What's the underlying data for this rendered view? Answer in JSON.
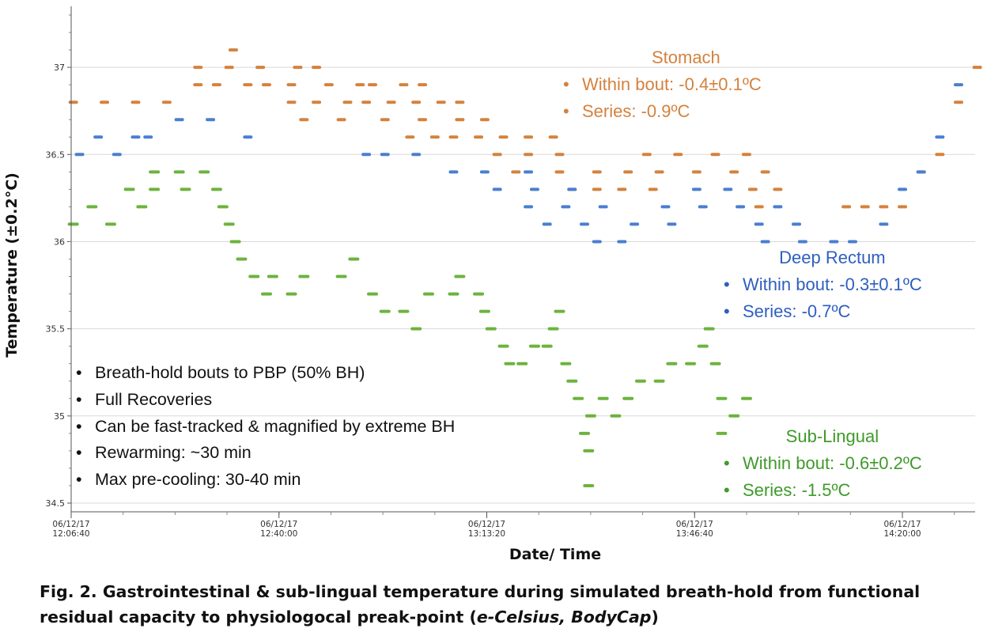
{
  "chart_data": {
    "type": "scatter",
    "title": "",
    "xlabel": "Date/ Time",
    "ylabel": "Temperature (±0.2°C)",
    "ylim": [
      34.45,
      37.35
    ],
    "yticks": [
      34.5,
      35,
      35.5,
      36,
      36.5,
      37
    ],
    "ytick_labels": [
      "34.5",
      "35",
      "35.5",
      "36",
      "36.5",
      "37"
    ],
    "xlim": [
      "06/12/17 12:06:40",
      "06/12/17 14:31:40"
    ],
    "xticks": [
      {
        "t": "06/12/17 12:06:40",
        "label1": "06/12/17",
        "label2": "12:06:40"
      },
      {
        "t": "06/12/17 12:40:00",
        "label1": "06/12/17",
        "label2": "12:40:00"
      },
      {
        "t": "06/12/17 13:13:20",
        "label1": "06/12/17",
        "label2": "13:13:20"
      },
      {
        "t": "06/12/17 13:46:40",
        "label1": "06/12/17",
        "label2": "13:46:40"
      },
      {
        "t": "06/12/17 14:20:00",
        "label1": "06/12/17",
        "label2": "14:20:00"
      }
    ],
    "grid": "horizontal",
    "series": [
      {
        "name": "Stomach",
        "color": "#d4823e",
        "points": [
          [
            "06/12/17 12:07:00",
            36.8
          ],
          [
            "06/12/17 12:12:00",
            36.8
          ],
          [
            "06/12/17 12:17:00",
            36.8
          ],
          [
            "06/12/17 12:22:00",
            36.8
          ],
          [
            "06/12/17 12:27:00",
            37.0
          ],
          [
            "06/12/17 12:32:00",
            37.0
          ],
          [
            "06/12/17 12:32:40",
            37.1
          ],
          [
            "06/12/17 12:37:00",
            37.0
          ],
          [
            "06/12/17 12:43:00",
            37.0
          ],
          [
            "06/12/17 12:46:00",
            37.0
          ],
          [
            "06/12/17 12:27:00",
            36.9
          ],
          [
            "06/12/17 12:30:00",
            36.9
          ],
          [
            "06/12/17 12:35:00",
            36.9
          ],
          [
            "06/12/17 12:38:00",
            36.9
          ],
          [
            "06/12/17 12:42:00",
            36.9
          ],
          [
            "06/12/17 12:48:00",
            36.9
          ],
          [
            "06/12/17 12:53:00",
            36.9
          ],
          [
            "06/12/17 12:55:00",
            36.9
          ],
          [
            "06/12/17 13:00:00",
            36.9
          ],
          [
            "06/12/17 13:03:00",
            36.9
          ],
          [
            "06/12/17 12:42:00",
            36.8
          ],
          [
            "06/12/17 12:46:00",
            36.8
          ],
          [
            "06/12/17 12:51:00",
            36.8
          ],
          [
            "06/12/17 12:54:00",
            36.8
          ],
          [
            "06/12/17 12:58:00",
            36.8
          ],
          [
            "06/12/17 13:02:00",
            36.8
          ],
          [
            "06/12/17 13:06:00",
            36.8
          ],
          [
            "06/12/17 13:09:00",
            36.8
          ],
          [
            "06/12/17 12:44:00",
            36.7
          ],
          [
            "06/12/17 12:50:00",
            36.7
          ],
          [
            "06/12/17 12:57:00",
            36.7
          ],
          [
            "06/12/17 13:03:00",
            36.7
          ],
          [
            "06/12/17 13:09:00",
            36.7
          ],
          [
            "06/12/17 13:13:00",
            36.7
          ],
          [
            "06/12/17 13:01:00",
            36.6
          ],
          [
            "06/12/17 13:05:00",
            36.6
          ],
          [
            "06/12/17 13:08:00",
            36.6
          ],
          [
            "06/12/17 13:12:00",
            36.6
          ],
          [
            "06/12/17 13:16:00",
            36.6
          ],
          [
            "06/12/17 13:20:00",
            36.6
          ],
          [
            "06/12/17 13:24:00",
            36.6
          ],
          [
            "06/12/17 13:15:00",
            36.5
          ],
          [
            "06/12/17 13:20:00",
            36.5
          ],
          [
            "06/12/17 13:25:00",
            36.5
          ],
          [
            "06/12/17 13:39:00",
            36.5
          ],
          [
            "06/12/17 13:44:00",
            36.5
          ],
          [
            "06/12/17 13:50:00",
            36.5
          ],
          [
            "06/12/17 13:55:00",
            36.5
          ],
          [
            "06/12/17 13:18:00",
            36.4
          ],
          [
            "06/12/17 13:25:00",
            36.4
          ],
          [
            "06/12/17 13:31:00",
            36.4
          ],
          [
            "06/12/17 13:36:00",
            36.4
          ],
          [
            "06/12/17 13:41:00",
            36.4
          ],
          [
            "06/12/17 13:47:00",
            36.4
          ],
          [
            "06/12/17 13:53:00",
            36.4
          ],
          [
            "06/12/17 13:58:00",
            36.4
          ],
          [
            "06/12/17 13:27:00",
            36.3
          ],
          [
            "06/12/17 13:31:00",
            36.3
          ],
          [
            "06/12/17 13:35:00",
            36.3
          ],
          [
            "06/12/17 13:40:00",
            36.3
          ],
          [
            "06/12/17 13:56:00",
            36.3
          ],
          [
            "06/12/17 14:00:00",
            36.3
          ],
          [
            "06/12/17 13:57:00",
            36.2
          ],
          [
            "06/12/17 14:11:00",
            36.2
          ],
          [
            "06/12/17 14:14:00",
            36.2
          ],
          [
            "06/12/17 14:17:00",
            36.2
          ],
          [
            "06/12/17 14:20:00",
            36.2
          ],
          [
            "06/12/17 14:23:00",
            36.4
          ],
          [
            "06/12/17 14:26:00",
            36.5
          ],
          [
            "06/12/17 14:29:00",
            36.8
          ],
          [
            "06/12/17 14:32:00",
            37.0
          ]
        ]
      },
      {
        "name": "Deep Rectum",
        "color": "#4a7fd0",
        "points": [
          [
            "06/12/17 12:08:00",
            36.5
          ],
          [
            "06/12/17 12:11:00",
            36.6
          ],
          [
            "06/12/17 12:14:00",
            36.5
          ],
          [
            "06/12/17 12:17:00",
            36.6
          ],
          [
            "06/12/17 12:19:00",
            36.6
          ],
          [
            "06/12/17 12:24:00",
            36.7
          ],
          [
            "06/12/17 12:29:00",
            36.7
          ],
          [
            "06/12/17 12:35:00",
            36.6
          ],
          [
            "06/12/17 12:54:00",
            36.5
          ],
          [
            "06/12/17 12:57:00",
            36.5
          ],
          [
            "06/12/17 13:02:00",
            36.5
          ],
          [
            "06/12/17 13:08:00",
            36.4
          ],
          [
            "06/12/17 13:13:00",
            36.4
          ],
          [
            "06/12/17 13:20:00",
            36.4
          ],
          [
            "06/12/17 13:15:00",
            36.3
          ],
          [
            "06/12/17 13:21:00",
            36.3
          ],
          [
            "06/12/17 13:27:00",
            36.3
          ],
          [
            "06/12/17 13:47:00",
            36.3
          ],
          [
            "06/12/17 13:52:00",
            36.3
          ],
          [
            "06/12/17 13:20:00",
            36.2
          ],
          [
            "06/12/17 13:26:00",
            36.2
          ],
          [
            "06/12/17 13:32:00",
            36.2
          ],
          [
            "06/12/17 13:42:00",
            36.2
          ],
          [
            "06/12/17 13:48:00",
            36.2
          ],
          [
            "06/12/17 13:54:00",
            36.2
          ],
          [
            "06/12/17 14:00:00",
            36.2
          ],
          [
            "06/12/17 13:23:00",
            36.1
          ],
          [
            "06/12/17 13:29:00",
            36.1
          ],
          [
            "06/12/17 13:37:00",
            36.1
          ],
          [
            "06/12/17 13:43:00",
            36.1
          ],
          [
            "06/12/17 13:57:00",
            36.1
          ],
          [
            "06/12/17 14:03:00",
            36.1
          ],
          [
            "06/12/17 13:31:00",
            36.0
          ],
          [
            "06/12/17 13:35:00",
            36.0
          ],
          [
            "06/12/17 13:58:00",
            36.0
          ],
          [
            "06/12/17 14:04:00",
            36.0
          ],
          [
            "06/12/17 14:09:00",
            36.0
          ],
          [
            "06/12/17 14:12:00",
            36.0
          ],
          [
            "06/12/17 14:17:00",
            36.1
          ],
          [
            "06/12/17 14:20:00",
            36.3
          ],
          [
            "06/12/17 14:23:00",
            36.4
          ],
          [
            "06/12/17 14:26:00",
            36.6
          ],
          [
            "06/12/17 14:29:00",
            36.9
          ]
        ]
      },
      {
        "name": "Sub-Lingual",
        "color": "#6db33f",
        "points": [
          [
            "06/12/17 12:07:00",
            36.1
          ],
          [
            "06/12/17 12:10:00",
            36.2
          ],
          [
            "06/12/17 12:13:00",
            36.1
          ],
          [
            "06/12/17 12:16:00",
            36.3
          ],
          [
            "06/12/17 12:18:00",
            36.2
          ],
          [
            "06/12/17 12:20:00",
            36.4
          ],
          [
            "06/12/17 12:24:00",
            36.4
          ],
          [
            "06/12/17 12:28:00",
            36.4
          ],
          [
            "06/12/17 12:20:00",
            36.3
          ],
          [
            "06/12/17 12:25:00",
            36.3
          ],
          [
            "06/12/17 12:30:00",
            36.3
          ],
          [
            "06/12/17 12:31:00",
            36.2
          ],
          [
            "06/12/17 12:32:00",
            36.1
          ],
          [
            "06/12/17 12:33:00",
            36.0
          ],
          [
            "06/12/17 12:34:00",
            35.9
          ],
          [
            "06/12/17 12:36:00",
            35.8
          ],
          [
            "06/12/17 12:39:00",
            35.8
          ],
          [
            "06/12/17 12:38:00",
            35.7
          ],
          [
            "06/12/17 12:42:00",
            35.7
          ],
          [
            "06/12/17 12:44:00",
            35.8
          ],
          [
            "06/12/17 12:50:00",
            35.8
          ],
          [
            "06/12/17 12:52:00",
            35.9
          ],
          [
            "06/12/17 12:55:00",
            35.7
          ],
          [
            "06/12/17 12:57:00",
            35.6
          ],
          [
            "06/12/17 13:00:00",
            35.6
          ],
          [
            "06/12/17 13:02:00",
            35.5
          ],
          [
            "06/12/17 13:04:00",
            35.7
          ],
          [
            "06/12/17 13:08:00",
            35.7
          ],
          [
            "06/12/17 13:09:00",
            35.8
          ],
          [
            "06/12/17 13:12:00",
            35.7
          ],
          [
            "06/12/17 13:13:00",
            35.6
          ],
          [
            "06/12/17 13:14:00",
            35.5
          ],
          [
            "06/12/17 13:16:00",
            35.4
          ],
          [
            "06/12/17 13:17:00",
            35.3
          ],
          [
            "06/12/17 13:19:00",
            35.3
          ],
          [
            "06/12/17 13:21:00",
            35.4
          ],
          [
            "06/12/17 13:23:00",
            35.4
          ],
          [
            "06/12/17 13:24:00",
            35.5
          ],
          [
            "06/12/17 13:25:00",
            35.6
          ],
          [
            "06/12/17 13:26:00",
            35.3
          ],
          [
            "06/12/17 13:27:00",
            35.2
          ],
          [
            "06/12/17 13:28:00",
            35.1
          ],
          [
            "06/12/17 13:29:00",
            34.9
          ],
          [
            "06/12/17 13:29:40",
            34.8
          ],
          [
            "06/12/17 13:29:40",
            34.6
          ],
          [
            "06/12/17 13:30:00",
            35.0
          ],
          [
            "06/12/17 13:32:00",
            35.1
          ],
          [
            "06/12/17 13:34:00",
            35.0
          ],
          [
            "06/12/17 13:36:00",
            35.1
          ],
          [
            "06/12/17 13:38:00",
            35.2
          ],
          [
            "06/12/17 13:41:00",
            35.2
          ],
          [
            "06/12/17 13:43:00",
            35.3
          ],
          [
            "06/12/17 13:46:00",
            35.3
          ],
          [
            "06/12/17 13:48:00",
            35.4
          ],
          [
            "06/12/17 13:49:00",
            35.5
          ],
          [
            "06/12/17 13:50:00",
            35.3
          ],
          [
            "06/12/17 13:51:00",
            35.1
          ],
          [
            "06/12/17 13:51:00",
            34.9
          ],
          [
            "06/12/17 13:53:00",
            35.0
          ],
          [
            "06/12/17 13:55:00",
            35.1
          ]
        ]
      }
    ]
  },
  "notes": [
    "Breath-hold bouts to PBP (50% BH)",
    "Full Recoveries",
    "Can be fast-tracked & magnified by extreme BH",
    "Rewarming: ~30 min",
    "Max pre-cooling: 30-40 min"
  ],
  "annotations": {
    "stomach": {
      "title": "Stomach",
      "within": "Within bout: -0.4±0.1ºC",
      "series": "Series: -0.9ºC",
      "color": "#d4823e"
    },
    "rectum": {
      "title": "Deep Rectum",
      "within": "Within bout: -0.3±0.1ºC",
      "series": "Series: -0.7ºC",
      "color": "#2e5fbf"
    },
    "lingual": {
      "title": "Sub-Lingual",
      "within": "Within bout: -0.6±0.2ºC",
      "series": "Series: -1.5ºC",
      "color": "#3f9a2a"
    }
  },
  "caption": {
    "main": "Fig. 2. Gastrointestinal & sub-lingual temperature during simulated breath-hold from functional residual capacity to physiologocal preak-point (",
    "italic": "e-Celsius, BodyCap",
    "end": ")"
  },
  "bullet": "•"
}
